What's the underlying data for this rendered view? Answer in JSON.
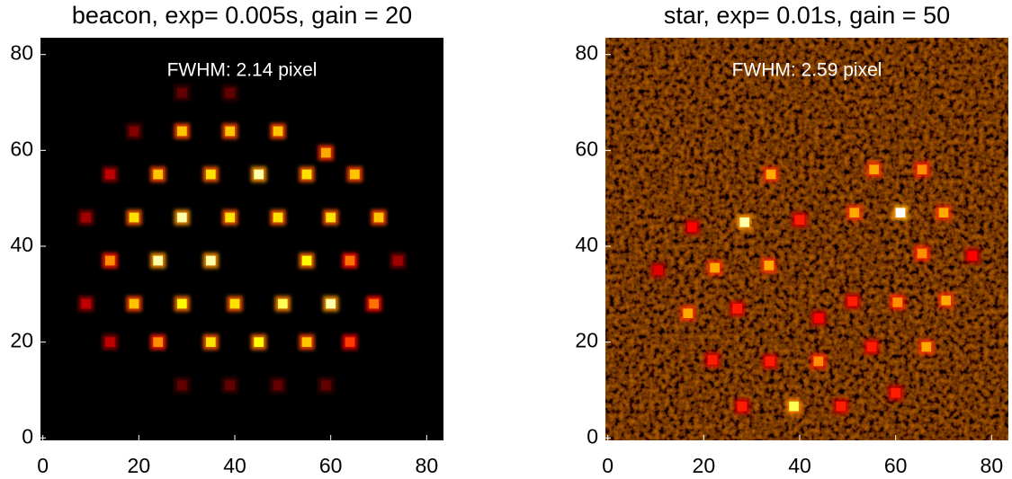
{
  "chart_data": [
    {
      "type": "image",
      "title": "beacon, exp= 0.005s, gain = 20",
      "annotation": "FWHM: 2.14 pixel",
      "background_color": "#000000",
      "noise": false,
      "xlim": [
        -0.5,
        83.5
      ],
      "ylim": [
        -0.5,
        83.5
      ],
      "xticks": [
        0,
        20,
        40,
        60,
        80
      ],
      "yticks": [
        0,
        20,
        40,
        60,
        80
      ],
      "x": [
        29,
        39,
        49,
        59,
        14,
        24,
        35,
        45,
        55,
        65,
        9,
        19,
        29,
        39,
        49,
        60,
        70,
        14,
        24,
        35,
        55,
        64,
        74,
        9,
        19,
        29,
        40,
        50,
        60,
        69,
        14,
        24,
        35,
        45,
        55,
        64,
        29,
        39,
        49,
        59,
        19,
        29,
        39
      ],
      "y": [
        64,
        64,
        64,
        59.5,
        55,
        55,
        55,
        55,
        55,
        55,
        46,
        46,
        46,
        46,
        46,
        46,
        46,
        37,
        37,
        37,
        37,
        37,
        37,
        28,
        28,
        28,
        28,
        28,
        28,
        28,
        20,
        20,
        20,
        20,
        20,
        20,
        11,
        11,
        11,
        11,
        64,
        72,
        72
      ],
      "values": [
        0.75,
        0.75,
        0.75,
        0.7,
        0.3,
        0.75,
        0.8,
        0.95,
        0.8,
        0.75,
        0.25,
        0.8,
        0.95,
        0.8,
        0.8,
        0.8,
        0.75,
        0.65,
        0.95,
        0.95,
        0.85,
        0.6,
        0.25,
        0.3,
        0.75,
        0.85,
        0.8,
        0.9,
        0.95,
        0.6,
        0.3,
        0.65,
        0.8,
        0.85,
        0.75,
        0.5,
        0.15,
        0.15,
        0.15,
        0.15,
        0.2,
        0.15,
        0.15
      ]
    },
    {
      "type": "image",
      "title": "star, exp= 0.01s, gain = 50",
      "annotation": "FWHM: 2.59 pixel",
      "background_color": "#3a0b05",
      "noise": true,
      "xlim": [
        -0.5,
        83.5
      ],
      "ylim": [
        -0.5,
        83.5
      ],
      "xticks": [
        0,
        20,
        40,
        60,
        80
      ],
      "yticks": [
        0,
        20,
        40,
        60,
        80
      ],
      "x": [
        34,
        55.5,
        65.5,
        17.6,
        28.5,
        40,
        51.4,
        61,
        70,
        22.3,
        33.6,
        65.5,
        76,
        16.7,
        27,
        51,
        60.4,
        70.5,
        21.8,
        33.8,
        43.9,
        55,
        66.4,
        28,
        38.8,
        48.6,
        60,
        44,
        10.5
      ],
      "y": [
        55,
        56,
        56,
        44,
        45,
        45.5,
        47,
        47,
        47,
        35.5,
        36,
        38.5,
        38,
        26,
        27,
        28.5,
        28.3,
        28.7,
        16.3,
        16,
        16,
        19,
        19,
        6.6,
        6.6,
        6.6,
        9.4,
        25,
        35
      ],
      "values": [
        0.7,
        0.7,
        0.65,
        0.4,
        0.95,
        0.45,
        0.7,
        1.0,
        0.7,
        0.7,
        0.7,
        0.65,
        0.4,
        0.7,
        0.45,
        0.45,
        0.65,
        0.7,
        0.45,
        0.45,
        0.65,
        0.45,
        0.7,
        0.45,
        0.9,
        0.45,
        0.45,
        0.4,
        0.35
      ]
    }
  ]
}
